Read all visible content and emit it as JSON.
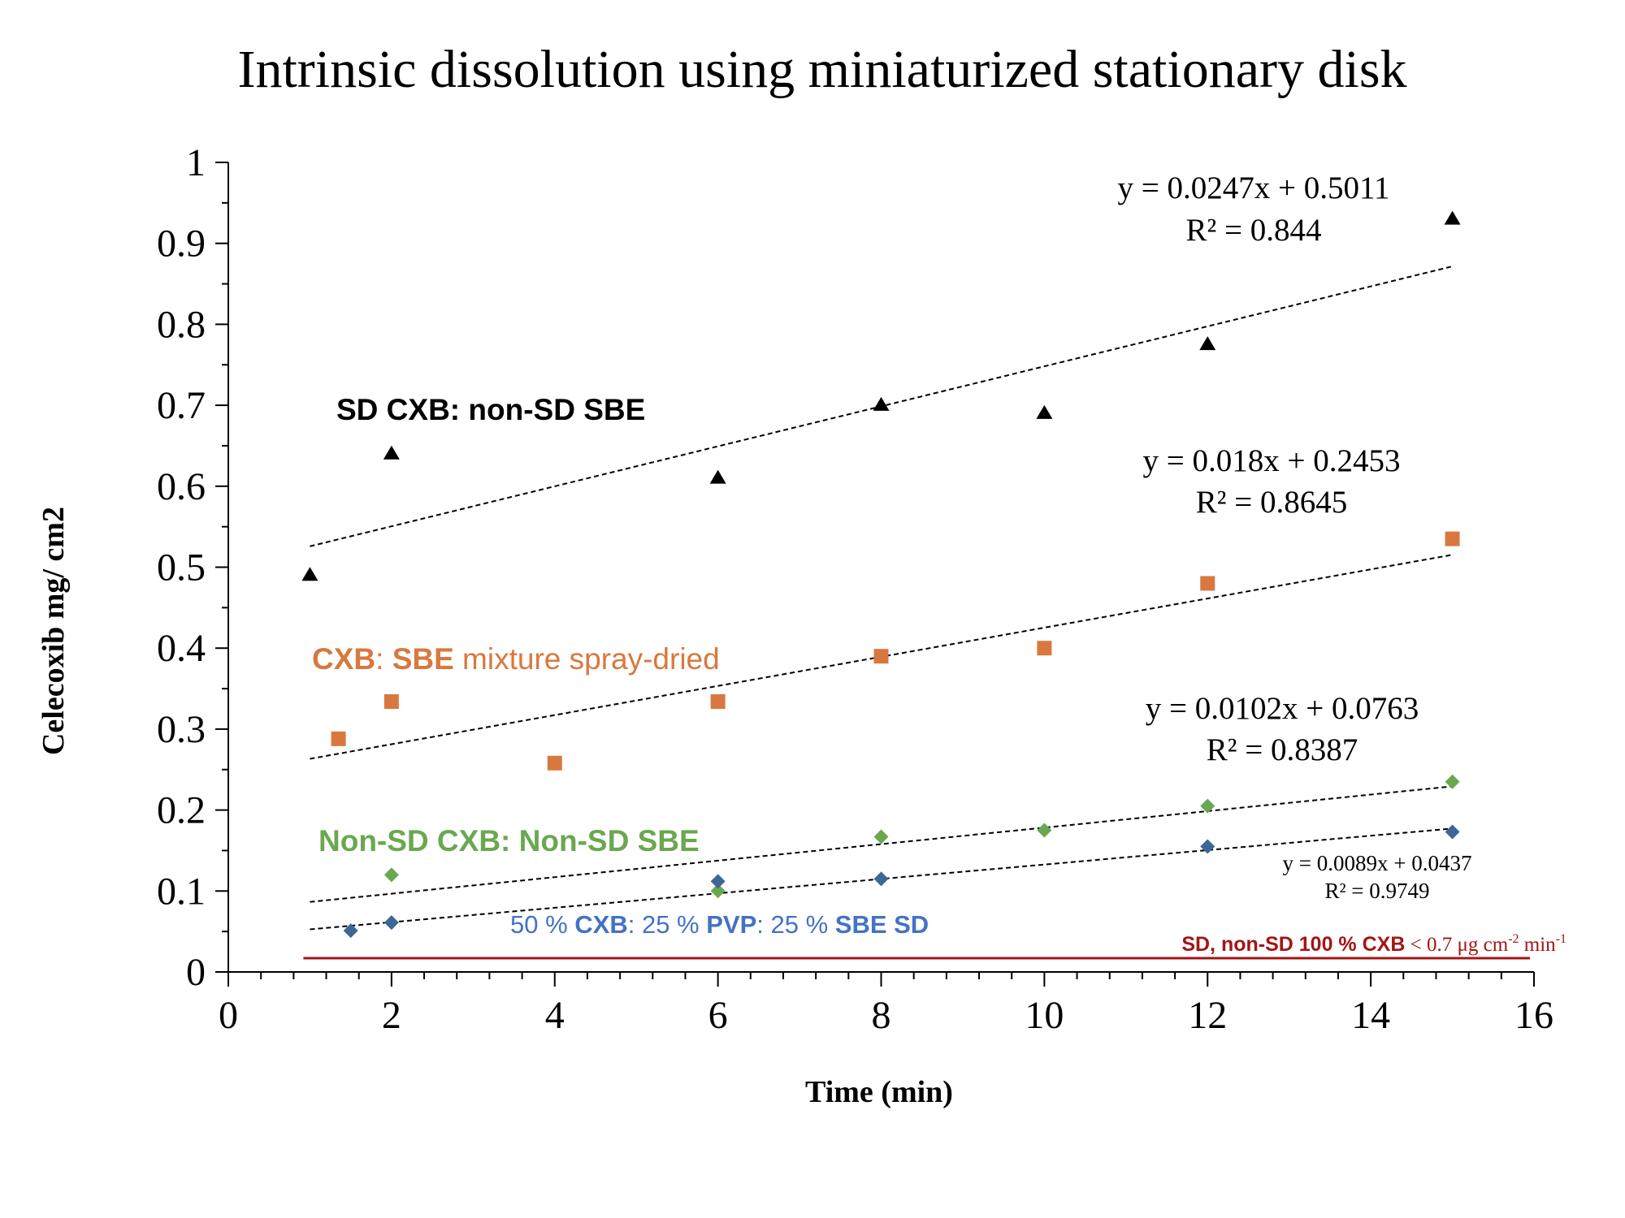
{
  "chart_data": {
    "type": "scatter",
    "title": "Intrinsic dissolution using miniaturized stationary disk",
    "xlabel": "Time (min)",
    "ylabel": "Celecoxib mg/ cm2",
    "xlim": [
      0,
      16
    ],
    "ylim": [
      0,
      1
    ],
    "xticks": [
      "0",
      "2",
      "4",
      "6",
      "8",
      "10",
      "12",
      "14",
      "16"
    ],
    "yticks": [
      "0",
      "0.1",
      "0.2",
      "0.3",
      "0.4",
      "0.5",
      "0.6",
      "0.7",
      "0.8",
      "0.9",
      "1"
    ],
    "grid": false,
    "series": [
      {
        "label": "SD CXB: non-SD SBE",
        "color": "#000000",
        "marker": "triangle",
        "points": [
          [
            1,
            0.49
          ],
          [
            2,
            0.64
          ],
          [
            6,
            0.61
          ],
          [
            8,
            0.7
          ],
          [
            10,
            0.69
          ],
          [
            12,
            0.775
          ],
          [
            15,
            0.93
          ]
        ],
        "trend": {
          "slope": 0.0247,
          "intercept": 0.5011,
          "range": [
            1,
            15
          ]
        },
        "equation": "y = 0.0247x + 0.5011",
        "r2": "R² = 0.844"
      },
      {
        "label_parts": [
          "CXB",
          ": ",
          "SBE",
          " mixture spray-dried"
        ],
        "color": "#D9783E",
        "marker": "square",
        "points": [
          [
            1.35,
            0.288
          ],
          [
            2,
            0.334
          ],
          [
            4,
            0.258
          ],
          [
            6,
            0.334
          ],
          [
            8,
            0.39
          ],
          [
            10,
            0.4
          ],
          [
            12,
            0.48
          ],
          [
            15,
            0.535
          ]
        ],
        "trend": {
          "slope": 0.018,
          "intercept": 0.2453,
          "range": [
            1,
            15
          ]
        },
        "equation": "y = 0.018x + 0.2453",
        "r2": "R² = 0.8645"
      },
      {
        "label": "Non-SD CXB: Non-SD SBE",
        "color": "#6AA84F",
        "marker": "diamond",
        "points": [
          [
            2,
            0.12
          ],
          [
            6,
            0.1
          ],
          [
            8,
            0.167
          ],
          [
            10,
            0.175
          ],
          [
            12,
            0.205
          ],
          [
            15,
            0.235
          ]
        ],
        "trend": {
          "slope": 0.0102,
          "intercept": 0.0763,
          "range": [
            1,
            15
          ]
        },
        "equation": "y = 0.0102x + 0.0763",
        "r2": "R² = 0.8387"
      },
      {
        "label_parts": [
          "50 % ",
          "CXB",
          ": 25 % ",
          "PVP",
          ": 25 % ",
          "SBE SD"
        ],
        "color": "#3E6796",
        "marker": "diamond",
        "points": [
          [
            1.5,
            0.051
          ],
          [
            2,
            0.061
          ],
          [
            6,
            0.112
          ],
          [
            8,
            0.115
          ],
          [
            12,
            0.155
          ],
          [
            15,
            0.173
          ]
        ],
        "trend": {
          "slope": 0.0089,
          "intercept": 0.0437,
          "range": [
            1,
            15
          ]
        },
        "equation": "y = 0.0089x + 0.0437",
        "r2": "R² = 0.9749"
      }
    ],
    "reference_line": {
      "y": 0.017,
      "color": "#A31515",
      "label_bold": "SD, non-SD 100 % CXB",
      "label_rest": " < 0.7 μg cm",
      "label_sup1": "-2",
      "label_mid": " min",
      "label_sup2": "-1"
    }
  }
}
